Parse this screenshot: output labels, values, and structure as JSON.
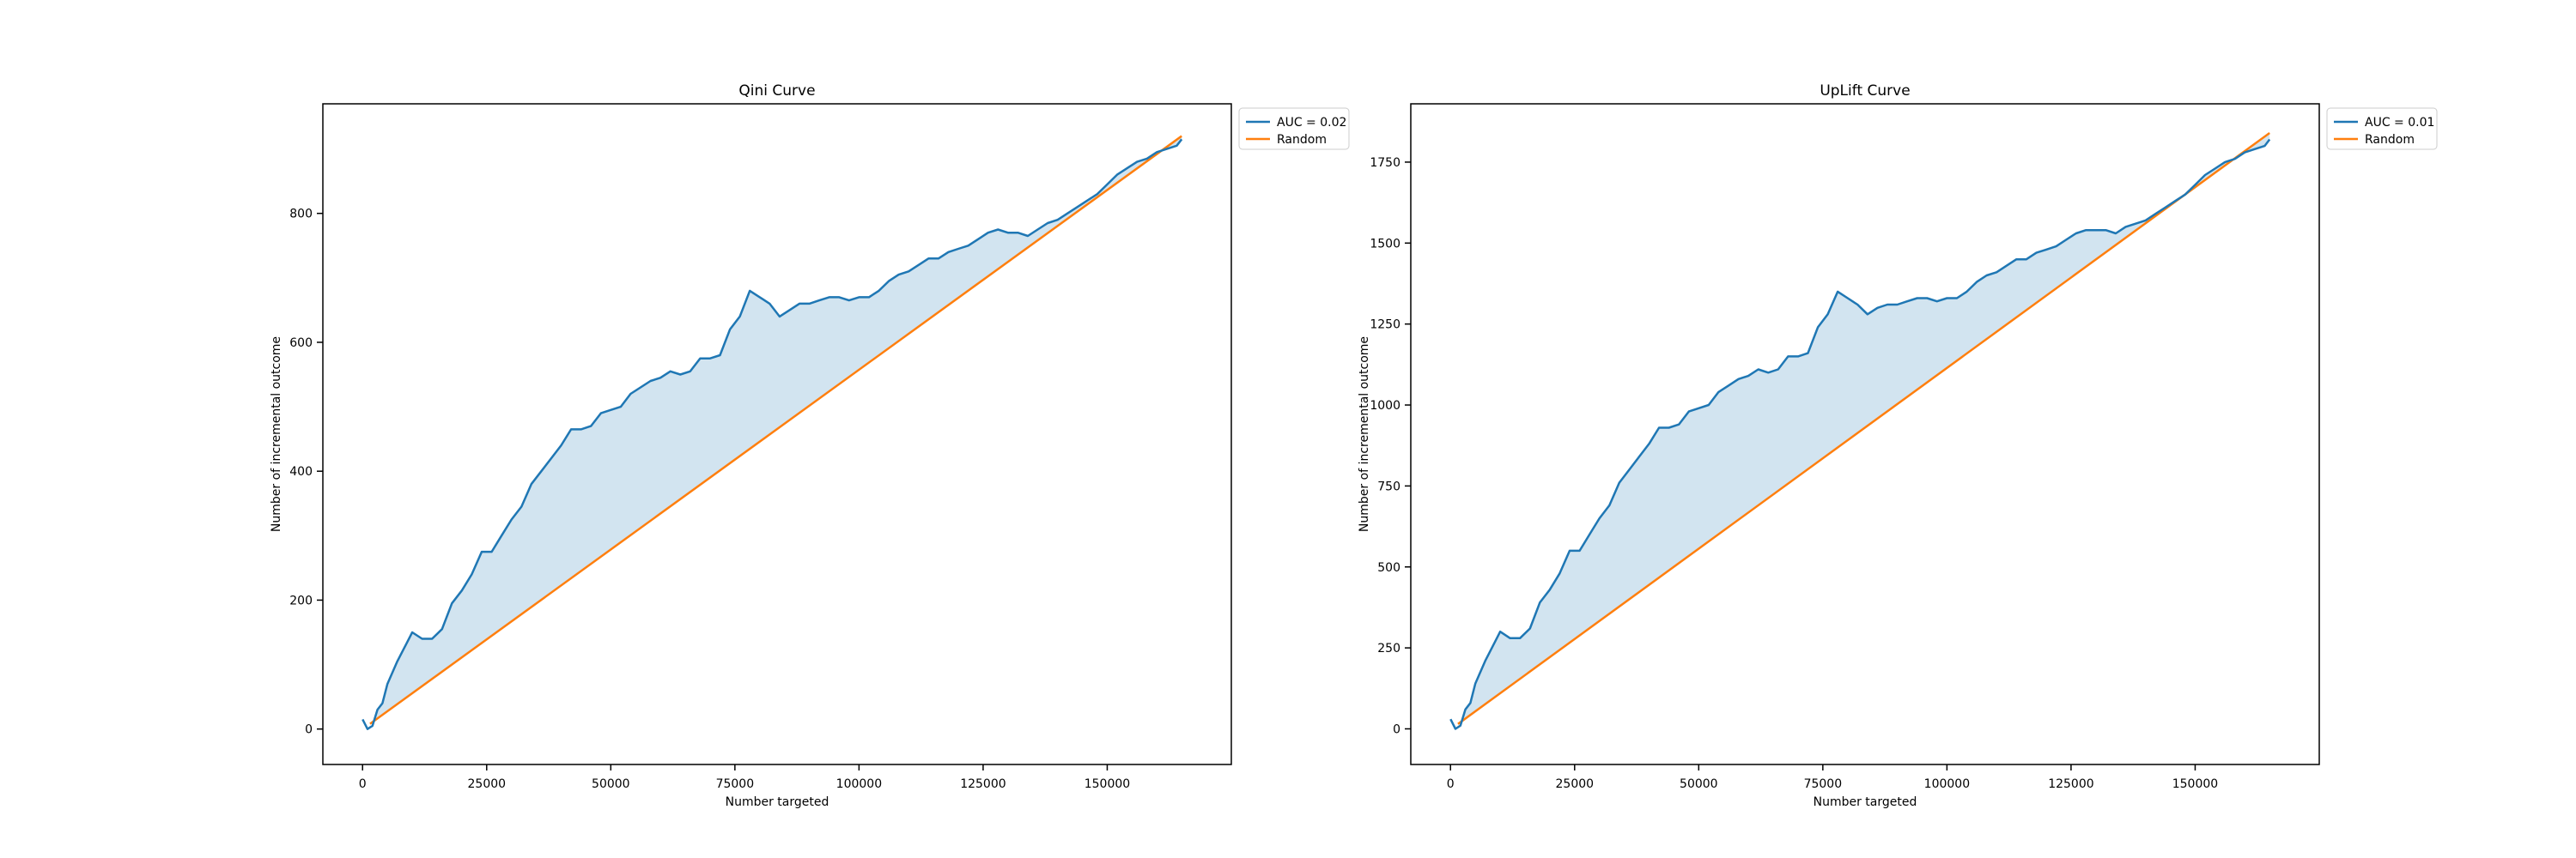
{
  "chart_data": [
    {
      "type": "line",
      "title": "Qini Curve",
      "xlabel": "Number targeted",
      "ylabel": "Number of incremental outcome",
      "xlim": [
        -8000,
        175000
      ],
      "ylim": [
        -55,
        970
      ],
      "xticks": [
        0,
        25000,
        50000,
        75000,
        100000,
        125000,
        150000
      ],
      "xtick_labels": [
        "0",
        "25000",
        "50000",
        "75000",
        "100000",
        "125000",
        "150000"
      ],
      "yticks": [
        0,
        200,
        400,
        600,
        800
      ],
      "ytick_labels": [
        "0",
        "200",
        "400",
        "600",
        "800"
      ],
      "grid": false,
      "legend_position": "outside-top-right",
      "shaded_between_series": true,
      "series": [
        {
          "name": "AUC = 0.02",
          "color": "#1f77b4",
          "x": [
            0,
            1000,
            2000,
            3000,
            4000,
            5000,
            7000,
            9000,
            10000,
            12000,
            14000,
            16000,
            18000,
            20000,
            22000,
            24000,
            26000,
            28000,
            30000,
            32000,
            34000,
            36000,
            38000,
            40000,
            42000,
            44000,
            46000,
            48000,
            50000,
            52000,
            54000,
            56000,
            58000,
            60000,
            62000,
            64000,
            66000,
            68000,
            70000,
            72000,
            74000,
            76000,
            78000,
            80000,
            82000,
            84000,
            86000,
            88000,
            90000,
            92000,
            94000,
            96000,
            98000,
            100000,
            102000,
            104000,
            106000,
            108000,
            110000,
            112000,
            114000,
            116000,
            118000,
            120000,
            122000,
            124000,
            126000,
            128000,
            130000,
            132000,
            134000,
            136000,
            138000,
            140000,
            142000,
            144000,
            146000,
            148000,
            150000,
            152000,
            154000,
            156000,
            158000,
            160000,
            162000,
            164000,
            165000
          ],
          "y": [
            15,
            0,
            5,
            30,
            40,
            70,
            105,
            135,
            150,
            140,
            140,
            155,
            195,
            215,
            240,
            275,
            275,
            300,
            325,
            345,
            380,
            400,
            420,
            440,
            465,
            465,
            470,
            490,
            495,
            500,
            520,
            530,
            540,
            545,
            555,
            550,
            555,
            575,
            575,
            580,
            620,
            640,
            680,
            670,
            660,
            640,
            650,
            660,
            660,
            665,
            670,
            670,
            665,
            670,
            670,
            680,
            695,
            705,
            710,
            720,
            730,
            730,
            740,
            745,
            750,
            760,
            770,
            775,
            770,
            770,
            765,
            775,
            785,
            790,
            800,
            810,
            820,
            830,
            845,
            860,
            870,
            880,
            885,
            895,
            900,
            905,
            915
          ]
        },
        {
          "name": "Random",
          "color": "#ff7f0e",
          "x": [
            1500,
            165000
          ],
          "y": [
            8,
            920
          ]
        }
      ]
    },
    {
      "type": "line",
      "title": "UpLift Curve",
      "xlabel": "Number targeted",
      "ylabel": "Number of incremental outcome",
      "xlim": [
        -8000,
        175000
      ],
      "ylim": [
        -110,
        1930
      ],
      "xticks": [
        0,
        25000,
        50000,
        75000,
        100000,
        125000,
        150000
      ],
      "xtick_labels": [
        "0",
        "25000",
        "50000",
        "75000",
        "100000",
        "125000",
        "150000"
      ],
      "yticks": [
        0,
        250,
        500,
        750,
        1000,
        1250,
        1500,
        1750
      ],
      "ytick_labels": [
        "0",
        "250",
        "500",
        "750",
        "1000",
        "1250",
        "1500",
        "1750"
      ],
      "grid": false,
      "legend_position": "outside-top-right",
      "shaded_between_series": true,
      "series": [
        {
          "name": "AUC = 0.01",
          "color": "#1f77b4",
          "x": [
            0,
            1000,
            2000,
            3000,
            4000,
            5000,
            7000,
            9000,
            10000,
            12000,
            14000,
            16000,
            18000,
            20000,
            22000,
            24000,
            26000,
            28000,
            30000,
            32000,
            34000,
            36000,
            38000,
            40000,
            42000,
            44000,
            46000,
            48000,
            50000,
            52000,
            54000,
            56000,
            58000,
            60000,
            62000,
            64000,
            66000,
            68000,
            70000,
            72000,
            74000,
            76000,
            78000,
            80000,
            82000,
            84000,
            86000,
            88000,
            90000,
            92000,
            94000,
            96000,
            98000,
            100000,
            102000,
            104000,
            106000,
            108000,
            110000,
            112000,
            114000,
            116000,
            118000,
            120000,
            122000,
            124000,
            126000,
            128000,
            130000,
            132000,
            134000,
            136000,
            138000,
            140000,
            142000,
            144000,
            146000,
            148000,
            150000,
            152000,
            154000,
            156000,
            158000,
            160000,
            162000,
            164000,
            165000
          ],
          "y": [
            30,
            0,
            10,
            60,
            80,
            140,
            210,
            270,
            300,
            280,
            280,
            310,
            390,
            430,
            480,
            550,
            550,
            600,
            650,
            690,
            760,
            800,
            840,
            880,
            930,
            930,
            940,
            980,
            990,
            1000,
            1040,
            1060,
            1080,
            1090,
            1110,
            1100,
            1110,
            1150,
            1150,
            1160,
            1240,
            1280,
            1350,
            1330,
            1310,
            1280,
            1300,
            1310,
            1310,
            1320,
            1330,
            1330,
            1320,
            1330,
            1330,
            1350,
            1380,
            1400,
            1410,
            1430,
            1450,
            1450,
            1470,
            1480,
            1490,
            1510,
            1530,
            1540,
            1540,
            1540,
            1530,
            1550,
            1560,
            1570,
            1590,
            1610,
            1630,
            1650,
            1680,
            1710,
            1730,
            1750,
            1760,
            1780,
            1790,
            1800,
            1820
          ]
        },
        {
          "name": "Random",
          "color": "#ff7f0e",
          "x": [
            1500,
            165000
          ],
          "y": [
            15,
            1840
          ]
        }
      ]
    }
  ]
}
